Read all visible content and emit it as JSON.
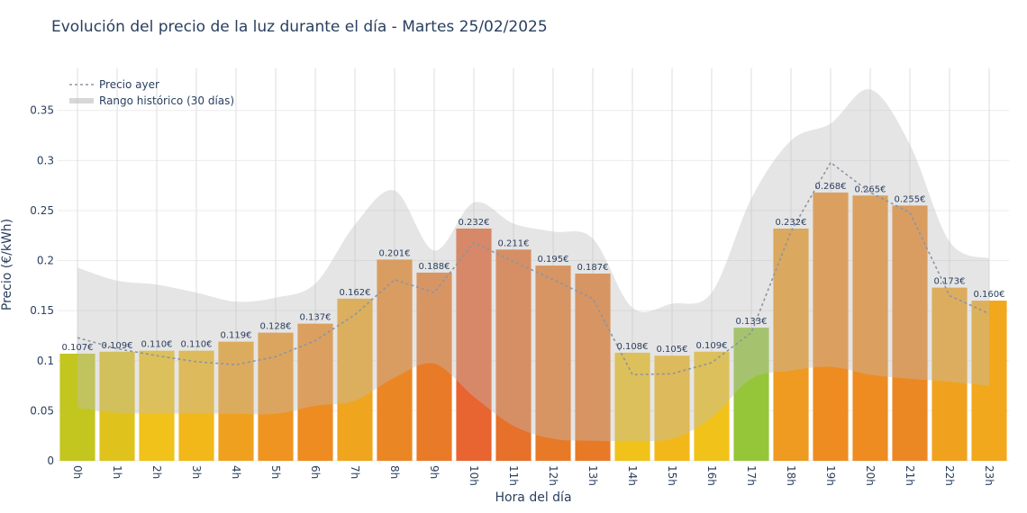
{
  "chart_data": {
    "type": "bar",
    "title": "Evolución del precio de la luz durante el día - Martes 25/02/2025",
    "xlabel": "Hora del día",
    "ylabel": "Precio (€/kWh)",
    "ylim": [
      0,
      0.392
    ],
    "yticks": [
      "0",
      "0.05",
      "0.1",
      "0.15",
      "0.2",
      "0.25",
      "0.3",
      "0.35"
    ],
    "categories": [
      "0h",
      "1h",
      "2h",
      "3h",
      "4h",
      "5h",
      "6h",
      "7h",
      "8h",
      "9h",
      "10h",
      "11h",
      "12h",
      "13h",
      "14h",
      "15h",
      "16h",
      "17h",
      "18h",
      "19h",
      "20h",
      "21h",
      "22h",
      "23h"
    ],
    "series": [
      {
        "type": "bar",
        "values": [
          0.107,
          0.109,
          0.11,
          0.11,
          0.119,
          0.128,
          0.137,
          0.162,
          0.201,
          0.188,
          0.232,
          0.211,
          0.195,
          0.187,
          0.108,
          0.105,
          0.109,
          0.133,
          0.232,
          0.268,
          0.265,
          0.255,
          0.173,
          0.16
        ],
        "labels": [
          "0.107€",
          "0.109€",
          "0.110€",
          "0.110€",
          "0.119€",
          "0.128€",
          "0.137€",
          "0.162€",
          "0.201€",
          "0.188€",
          "0.232€",
          "0.211€",
          "0.195€",
          "0.187€",
          "0.108€",
          "0.105€",
          "0.109€",
          "0.133€",
          "0.232€",
          "0.268€",
          "0.265€",
          "0.255€",
          "0.173€",
          "0.160€"
        ],
        "colors": [
          "#c2c61f",
          "#e0c21c",
          "#f0c21a",
          "#f2b81a",
          "#f0a01f",
          "#ef9421",
          "#ee8c22",
          "#f0a51f",
          "#eb8624",
          "#e97a28",
          "#e86430",
          "#e7702b",
          "#e87a27",
          "#e87a27",
          "#f0c21a",
          "#f2b81a",
          "#f0c21a",
          "#95c63a",
          "#ef9a20",
          "#ee8c22",
          "#ee8c22",
          "#ec8823",
          "#f0a21f",
          "#f2a81c"
        ]
      },
      {
        "name": "Precio ayer",
        "type": "line",
        "values": [
          0.123,
          0.112,
          0.105,
          0.099,
          0.096,
          0.104,
          0.12,
          0.146,
          0.181,
          0.168,
          0.218,
          0.199,
          0.181,
          0.162,
          0.086,
          0.087,
          0.098,
          0.128,
          0.229,
          0.298,
          0.268,
          0.248,
          0.165,
          0.147
        ],
        "color": "#8c95a3"
      },
      {
        "name": "Rango histórico (30 días)",
        "type": "area",
        "upper": [
          0.193,
          0.18,
          0.176,
          0.168,
          0.159,
          0.163,
          0.177,
          0.236,
          0.27,
          0.21,
          0.258,
          0.237,
          0.229,
          0.222,
          0.153,
          0.157,
          0.168,
          0.262,
          0.32,
          0.337,
          0.371,
          0.316,
          0.219,
          0.202
        ],
        "lower": [
          0.053,
          0.048,
          0.047,
          0.047,
          0.047,
          0.047,
          0.055,
          0.06,
          0.083,
          0.097,
          0.064,
          0.035,
          0.022,
          0.02,
          0.02,
          0.022,
          0.043,
          0.082,
          0.09,
          0.094,
          0.086,
          0.082,
          0.079,
          0.075
        ],
        "color": "#bdbdbd"
      }
    ],
    "legend": {
      "position": "top-left",
      "entries": [
        "Precio ayer",
        "Rango histórico (30 días)"
      ]
    },
    "grid": true
  }
}
